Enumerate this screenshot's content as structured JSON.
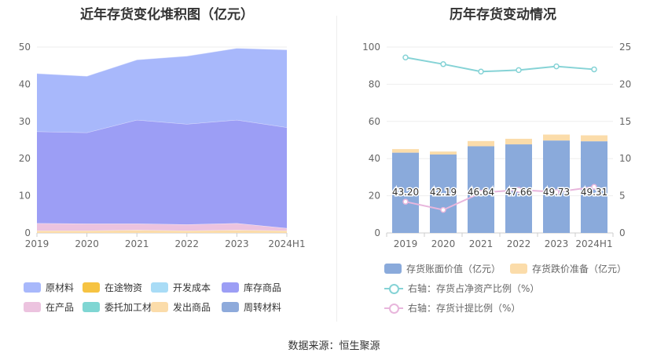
{
  "left_title": "近年存货变化堆积图（亿元）",
  "right_title": "历年存货变动情况",
  "source": "数据来源：恒生聚源",
  "chart_data": [
    {
      "type": "area",
      "stacked": true,
      "title": "近年存货变化堆积图（亿元）",
      "categories": [
        "2019",
        "2020",
        "2021",
        "2022",
        "2023",
        "2024H1"
      ],
      "ylim": [
        0,
        50
      ],
      "yticks": [
        0,
        10,
        20,
        30,
        40,
        50
      ],
      "grid": true,
      "legend_position": "bottom",
      "series": [
        {
          "name": "原材料",
          "color": "#a8b8fb",
          "values": [
            15.6,
            15.2,
            16.2,
            18.3,
            19.3,
            20.9
          ]
        },
        {
          "name": "在途物资",
          "color": "#f6c342",
          "values": [
            0,
            0,
            0,
            0,
            0,
            0
          ]
        },
        {
          "name": "开发成本",
          "color": "#a9dcf6",
          "values": [
            0,
            0,
            0,
            0,
            0,
            0
          ]
        },
        {
          "name": "库存商品",
          "color": "#9c9ef5",
          "values": [
            24.7,
            24.5,
            27.9,
            27.0,
            27.8,
            27.1
          ]
        },
        {
          "name": "在产品",
          "color": "#ecc3df",
          "values": [
            2.0,
            1.9,
            1.7,
            1.7,
            1.8,
            0.7
          ]
        },
        {
          "name": "委托加工材料",
          "color": "#7fd6d3",
          "values": [
            0,
            0,
            0,
            0,
            0,
            0
          ]
        },
        {
          "name": "发出商品",
          "color": "#fbdcaa",
          "values": [
            0.6,
            0.6,
            0.8,
            0.6,
            0.8,
            0.6
          ]
        },
        {
          "name": "周转材料",
          "color": "#8eaadb",
          "values": [
            0,
            0,
            0,
            0,
            0,
            0
          ]
        }
      ]
    },
    {
      "type": "bar",
      "stacked": true,
      "title": "历年存货变动情况",
      "categories": [
        "2019",
        "2020",
        "2021",
        "2022",
        "2023",
        "2024H1"
      ],
      "ylim": [
        0,
        100
      ],
      "yticks": [
        0,
        20,
        40,
        60,
        80,
        100
      ],
      "y2lim": [
        0,
        25
      ],
      "y2ticks": [
        0,
        5,
        10,
        15,
        20,
        25
      ],
      "grid": true,
      "legend_position": "bottom",
      "series": [
        {
          "name": "存货账面价值（亿元）",
          "color": "#8aaadb",
          "axis": "left",
          "kind": "bar",
          "values": [
            43.2,
            42.19,
            46.64,
            47.66,
            49.73,
            49.31
          ],
          "labels": [
            "43.20",
            "42.19",
            "46.64",
            "47.66",
            "49.73",
            "49.31"
          ]
        },
        {
          "name": "存货跌价准备（亿元）",
          "color": "#fbdcaa",
          "axis": "left",
          "kind": "bar",
          "values": [
            1.9,
            1.6,
            2.8,
            3.0,
            3.2,
            3.2
          ]
        },
        {
          "name": "右轴：存货占净资产比例（%）",
          "color": "#86d3d6",
          "axis": "right",
          "kind": "line",
          "values": [
            23.6,
            22.7,
            21.7,
            21.9,
            22.4,
            22.0
          ]
        },
        {
          "name": "右轴：存货计提比例（%）",
          "color": "#e8b6dc",
          "axis": "right",
          "kind": "line",
          "values": [
            4.2,
            3.1,
            5.4,
            5.8,
            5.5,
            6.2
          ]
        }
      ]
    }
  ]
}
